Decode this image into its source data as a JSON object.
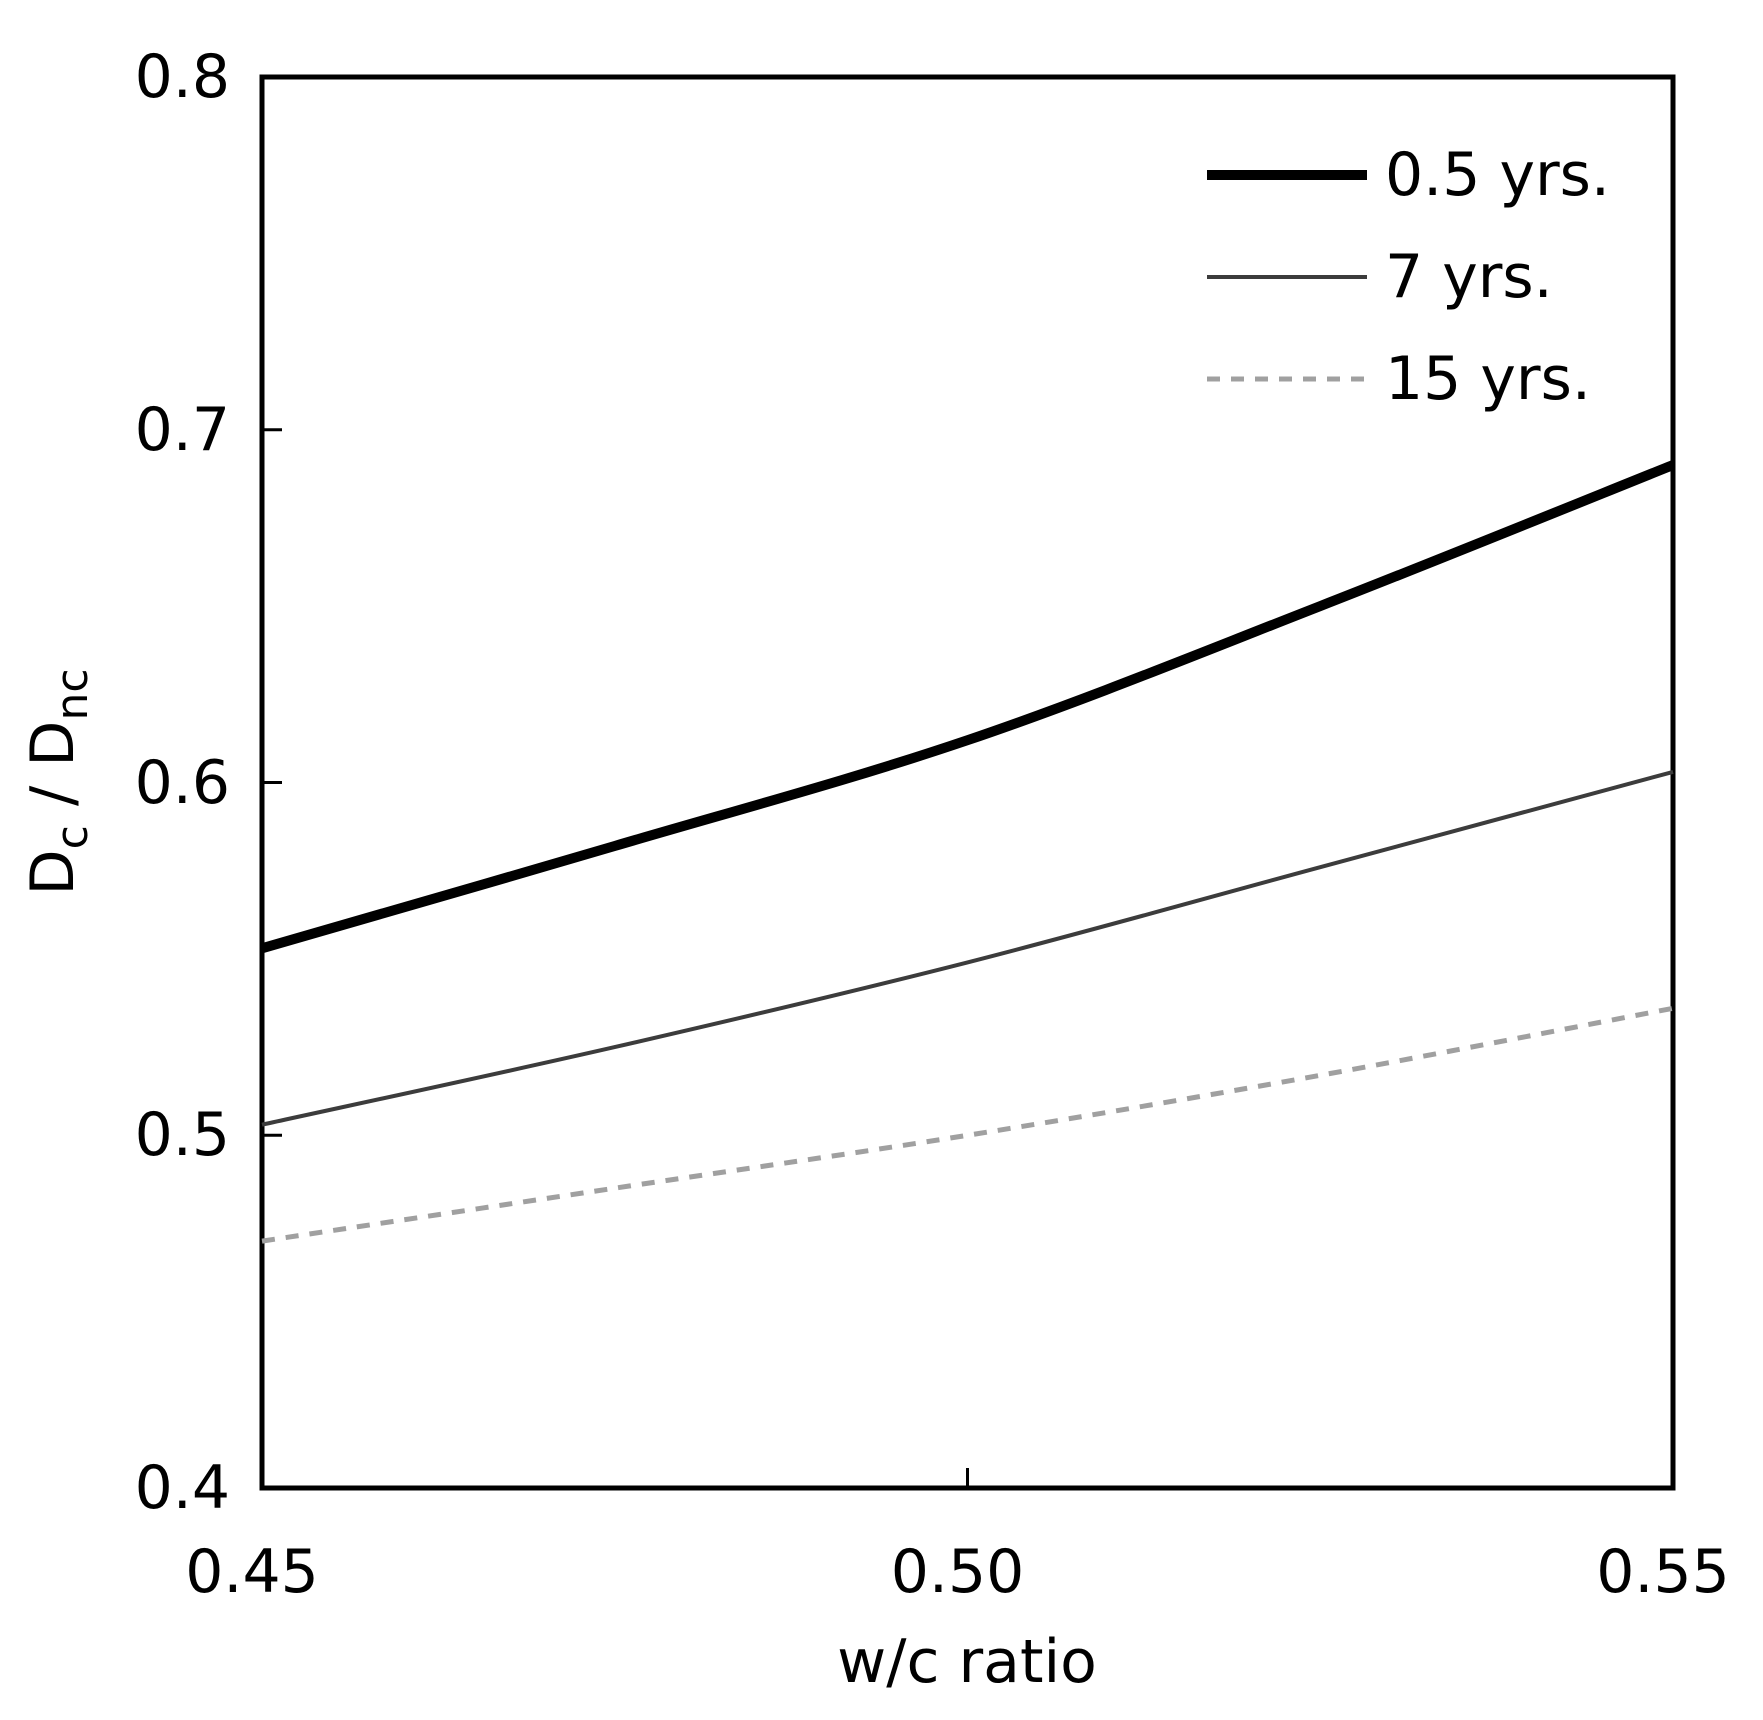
{
  "colors": {
    "background": "#ffffff",
    "frame": "#000000",
    "text": "#000000",
    "series_05yrs": "#000000",
    "series_7yrs": "#3c3c3c",
    "series_15yrs": "#a0a0a0"
  },
  "chart_data": {
    "type": "line",
    "title": "",
    "xlabel": "w/c ratio",
    "ylabel": "Dc / Dnc",
    "ylabel_parts": {
      "base1": "D",
      "sub1": "c",
      "mid": " / D",
      "sub2": "nc"
    },
    "xlim": [
      0.45,
      0.55
    ],
    "ylim": [
      0.4,
      0.8
    ],
    "grid": false,
    "legend_position": "top-right",
    "xticks": {
      "values": [
        0.45,
        0.5,
        0.55
      ],
      "labels": [
        "0.45",
        "0.50",
        "0.55"
      ]
    },
    "yticks": {
      "values": [
        0.4,
        0.5,
        0.6,
        0.7,
        0.8
      ],
      "labels": [
        "0.4",
        "0.5",
        "0.6",
        "0.7",
        "0.8"
      ]
    },
    "inner_xticks": [
      0.5
    ],
    "inner_yticks": [
      0.5,
      0.6,
      0.7
    ],
    "x": [
      0.45,
      0.475,
      0.5,
      0.525,
      0.55
    ],
    "series": [
      {
        "name": "0.5 yrs.",
        "values": [
          0.553,
          0.582,
          0.612,
          0.65,
          0.69
        ],
        "color": "#000000",
        "width": 10,
        "dash": ""
      },
      {
        "name": "7 yrs.",
        "values": [
          0.503,
          0.525,
          0.549,
          0.576,
          0.603
        ],
        "color": "#3c3c3c",
        "width": 4,
        "dash": ""
      },
      {
        "name": "15 yrs.",
        "values": [
          0.47,
          0.485,
          0.5,
          0.517,
          0.536
        ],
        "color": "#a0a0a0",
        "width": 5,
        "dash": "13 11"
      }
    ]
  }
}
